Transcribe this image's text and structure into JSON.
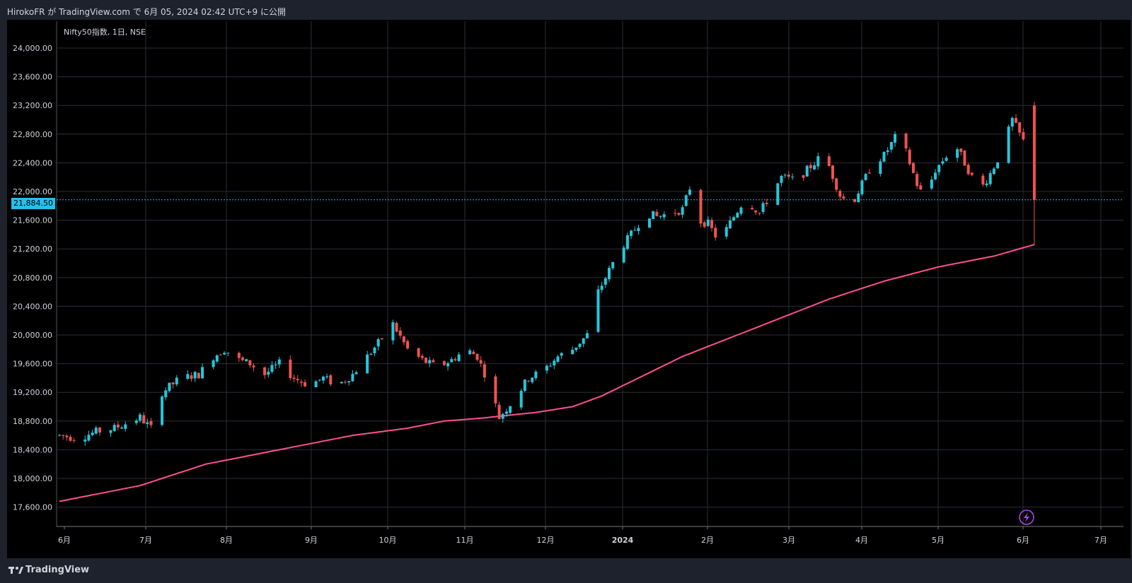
{
  "header": {
    "attribution": "HirokoFR が TradingView.com で 6月 05, 2024 02:42 UTC+9 に公開"
  },
  "footer": {
    "brand": "TradingView"
  },
  "colors": {
    "up": "#26c6da",
    "down": "#ef5350",
    "ma": "#ff4f93",
    "last_price_line": "#22c1ee",
    "grid": "#2a2e39"
  },
  "chart_data": {
    "type": "candlestick",
    "title": "Nifty50指数, 1日, NSE",
    "last_price_label": "21,884.50",
    "last_price": 21884.5,
    "y_ticks": [
      "24,000.00",
      "23,600.00",
      "23,200.00",
      "22,800.00",
      "22,400.00",
      "22,000.00",
      "21,600.00",
      "21,200.00",
      "20,800.00",
      "20,400.00",
      "20,000.00",
      "19,600.00",
      "19,200.00",
      "18,800.00",
      "18,400.00",
      "18,000.00",
      "17,600.00"
    ],
    "y_tick_values": [
      24000,
      23600,
      23200,
      22800,
      22400,
      22000,
      21600,
      21200,
      20800,
      20400,
      20000,
      19600,
      19200,
      18800,
      18400,
      18000,
      17600
    ],
    "ylim": [
      17450,
      24350
    ],
    "x_ticks": [
      "6月",
      "7月",
      "8月",
      "9月",
      "10月",
      "11月",
      "12月",
      "2024",
      "2月",
      "3月",
      "4月",
      "5月",
      "6月",
      "7月"
    ],
    "anchors_close": [
      [
        0,
        18600
      ],
      [
        5,
        18560
      ],
      [
        10,
        18650
      ],
      [
        15,
        18700
      ],
      [
        22,
        18850
      ],
      [
        25,
        18700
      ],
      [
        28,
        19200
      ],
      [
        33,
        19400
      ],
      [
        38,
        19450
      ],
      [
        42,
        19700
      ],
      [
        45,
        19800
      ],
      [
        49,
        19650
      ],
      [
        52,
        19600
      ],
      [
        56,
        19450
      ],
      [
        60,
        19600
      ],
      [
        64,
        19400
      ],
      [
        68,
        19300
      ],
      [
        72,
        19400
      ],
      [
        76,
        19300
      ],
      [
        80,
        19450
      ],
      [
        84,
        19700
      ],
      [
        88,
        19950
      ],
      [
        91,
        20150
      ],
      [
        95,
        19800
      ],
      [
        99,
        19650
      ],
      [
        103,
        19550
      ],
      [
        107,
        19650
      ],
      [
        111,
        19800
      ],
      [
        114,
        19700
      ],
      [
        117,
        19350
      ],
      [
        120,
        18850
      ],
      [
        124,
        19100
      ],
      [
        128,
        19400
      ],
      [
        132,
        19500
      ],
      [
        136,
        19700
      ],
      [
        140,
        19800
      ],
      [
        144,
        20000
      ],
      [
        147,
        20600
      ],
      [
        150,
        20900
      ],
      [
        153,
        21200
      ],
      [
        156,
        21400
      ],
      [
        160,
        21700
      ],
      [
        163,
        21650
      ],
      [
        167,
        21700
      ],
      [
        170,
        21750
      ],
      [
        172,
        22050
      ],
      [
        174,
        21600
      ],
      [
        177,
        21550
      ],
      [
        180,
        21300
      ],
      [
        184,
        21650
      ],
      [
        187,
        21900
      ],
      [
        191,
        21700
      ],
      [
        194,
        21950
      ],
      [
        197,
        22200
      ],
      [
        201,
        22150
      ],
      [
        204,
        22300
      ],
      [
        207,
        22450
      ],
      [
        210,
        22350
      ],
      [
        213,
        21950
      ],
      [
        216,
        21800
      ],
      [
        219,
        22100
      ],
      [
        222,
        22400
      ],
      [
        225,
        22500
      ],
      [
        228,
        22750
      ],
      [
        231,
        22550
      ],
      [
        234,
        22100
      ],
      [
        236,
        21900
      ],
      [
        239,
        22300
      ],
      [
        242,
        22500
      ],
      [
        245,
        22600
      ],
      [
        248,
        22300
      ],
      [
        251,
        22000
      ],
      [
        254,
        22250
      ],
      [
        257,
        22550
      ],
      [
        260,
        23000
      ],
      [
        262,
        22800
      ],
      [
        264,
        22600
      ],
      [
        265,
        23280
      ]
    ],
    "ma_anchors": [
      [
        0,
        17680
      ],
      [
        22,
        17900
      ],
      [
        40,
        18200
      ],
      [
        65,
        18450
      ],
      [
        80,
        18600
      ],
      [
        95,
        18700
      ],
      [
        105,
        18800
      ],
      [
        115,
        18840
      ],
      [
        130,
        18920
      ],
      [
        140,
        19000
      ],
      [
        148,
        19150
      ],
      [
        160,
        19450
      ],
      [
        170,
        19700
      ],
      [
        180,
        19900
      ],
      [
        195,
        20200
      ],
      [
        210,
        20500
      ],
      [
        225,
        20750
      ],
      [
        240,
        20950
      ],
      [
        255,
        21100
      ],
      [
        266,
        21260
      ]
    ],
    "special_candles": [
      {
        "index": 264,
        "open": 23000,
        "high": 23350,
        "low": 22950,
        "close": 23300
      },
      {
        "index": 266,
        "open": 23200,
        "high": 23250,
        "low": 21250,
        "close": 21884.5
      }
    ],
    "candle_count": 267
  }
}
